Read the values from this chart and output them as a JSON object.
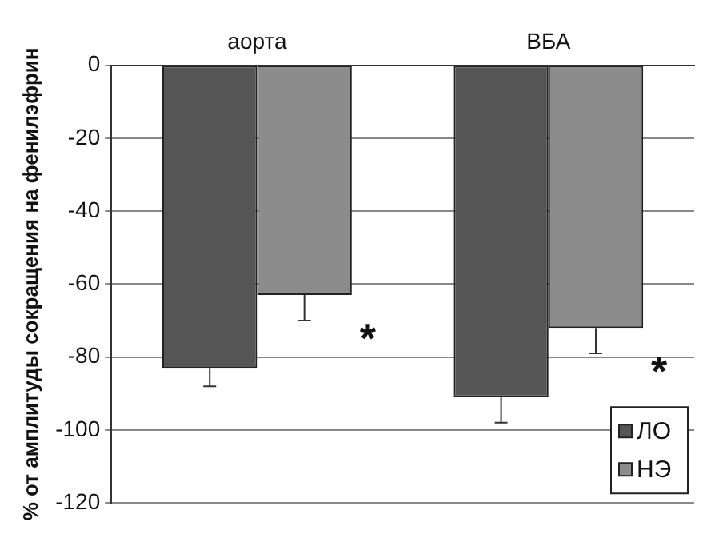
{
  "chart_data": {
    "type": "bar",
    "ylabel": "% от амплитуды сокращения на фенилэфрин",
    "categories": [
      "аорта",
      "ВБА"
    ],
    "series": [
      {
        "name": "ЛО",
        "color": "#555555",
        "values": [
          -83,
          -91
        ],
        "errors": [
          [
            -88,
            -83
          ],
          [
            -98,
            -91
          ]
        ]
      },
      {
        "name": "НЭ",
        "color": "#8c8c8c",
        "values": [
          -63,
          -72
        ],
        "errors": [
          [
            -70,
            -63
          ],
          [
            -79,
            -72
          ]
        ]
      }
    ],
    "ylim": [
      -120,
      0
    ],
    "yticks": [
      -120,
      -100,
      -80,
      -60,
      -40,
      -20,
      0
    ],
    "grid": "y",
    "legend": "bottom right",
    "annotations": [
      {
        "text": "*",
        "x": "аорта",
        "y": -72
      },
      {
        "text": "*",
        "x": "ВБА",
        "y": -81
      }
    ]
  }
}
